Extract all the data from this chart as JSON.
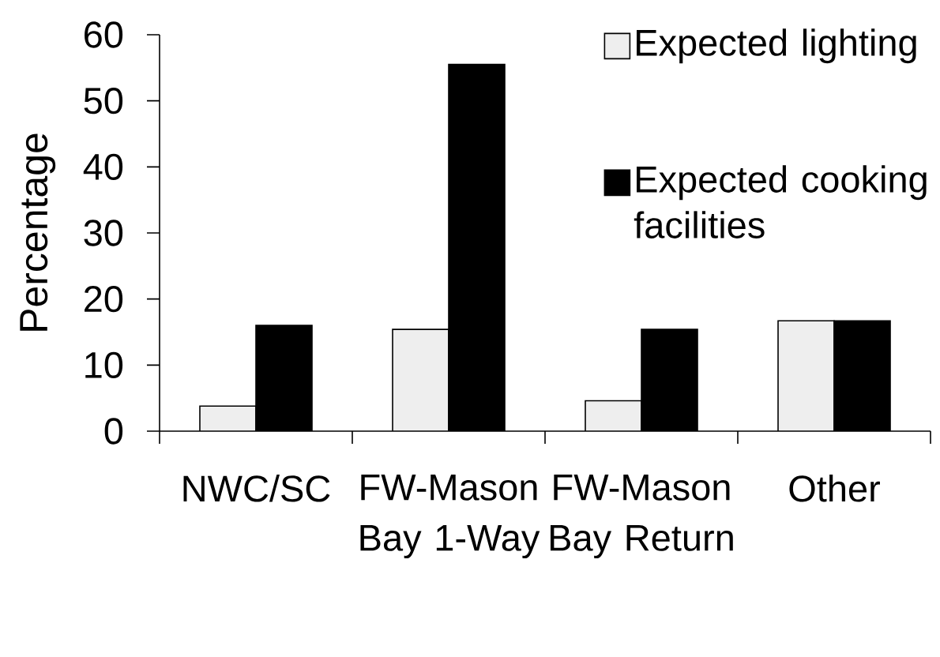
{
  "chart_data": {
    "type": "bar",
    "categories": [
      "NWC/SC",
      "FW-Mason Bay 1-Way",
      "FW-Mason Bay Return",
      "Other"
    ],
    "series": [
      {
        "name": "Expected lighting",
        "color": "#eeeeee",
        "values": [
          3.8,
          15.4,
          4.6,
          16.7
        ]
      },
      {
        "name": "Expected cooking facilities",
        "color": "#000000",
        "values": [
          16,
          55.5,
          15.4,
          16.7
        ]
      }
    ],
    "ylabel": "Percentage",
    "ylim": [
      0,
      60
    ],
    "yticks": [
      0,
      10,
      20,
      30,
      40,
      50,
      60
    ],
    "legend": "top right"
  }
}
